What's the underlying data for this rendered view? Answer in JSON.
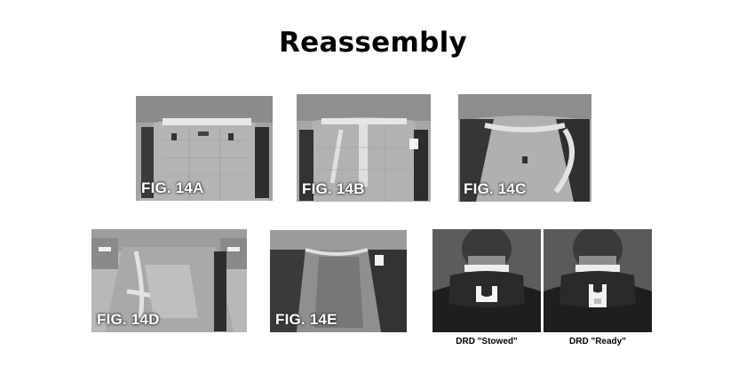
{
  "title": "Reassembly",
  "figures": [
    {
      "label": "FIG. 14A"
    },
    {
      "label": "FIG. 14B"
    },
    {
      "label": "FIG. 14C"
    },
    {
      "label": "FIG. 14D"
    },
    {
      "label": "FIG. 14E"
    }
  ],
  "drd": {
    "stowed_caption": "DRD \"Stowed\"",
    "ready_caption": "DRD \"Ready\""
  }
}
